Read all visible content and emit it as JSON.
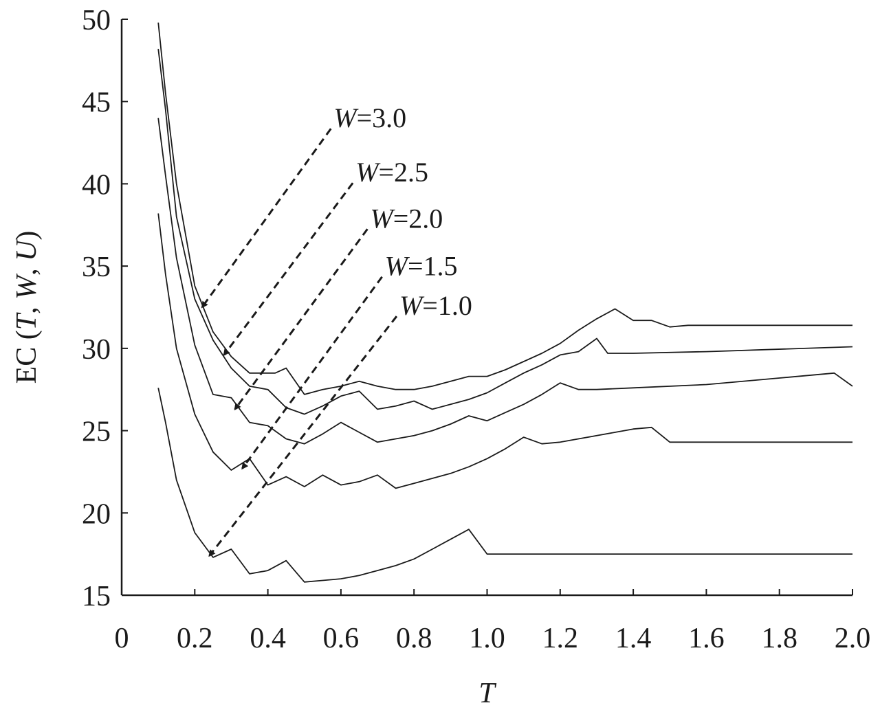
{
  "chart_data": {
    "type": "line",
    "title": "",
    "xlabel": "T",
    "ylabel": {
      "prefix": "EC (",
      "v1": "T",
      "sep1": ", ",
      "v2": "W",
      "sep2": ", ",
      "v3": "U",
      "suffix": ")"
    },
    "xlim": [
      0,
      2.0
    ],
    "ylim": [
      15,
      50
    ],
    "xticks": [
      0,
      0.2,
      0.4,
      0.6,
      0.8,
      1.0,
      1.2,
      1.4,
      1.6,
      1.8,
      2.0
    ],
    "xtick_labels": [
      "0",
      "0.2",
      "0.4",
      "0.6",
      "0.8",
      "1.0",
      "1.2",
      "1.4",
      "1.6",
      "1.8",
      "2.0"
    ],
    "yticks": [
      15,
      20,
      25,
      30,
      35,
      40,
      45,
      50
    ],
    "ytick_labels": [
      "15",
      "20",
      "25",
      "30",
      "35",
      "40",
      "45",
      "50"
    ],
    "grid": false,
    "line_color": "#1a1a1a",
    "series": [
      {
        "name": "W=3.0",
        "label_var": "W",
        "label_val": "=3.0",
        "label_at": [
          0.58,
          43.6
        ],
        "arrow_to": [
          0.22,
          32.5
        ],
        "x": [
          0.1,
          0.12,
          0.15,
          0.2,
          0.25,
          0.3,
          0.35,
          0.38,
          0.42,
          0.45,
          0.5,
          0.55,
          0.6,
          0.65,
          0.7,
          0.75,
          0.8,
          0.85,
          0.9,
          0.95,
          1.0,
          1.05,
          1.1,
          1.15,
          1.2,
          1.25,
          1.3,
          1.35,
          1.4,
          1.45,
          1.5,
          1.55,
          1.6,
          2.0
        ],
        "y": [
          49.8,
          45.5,
          40.0,
          33.8,
          31.0,
          29.5,
          28.5,
          28.5,
          28.5,
          28.8,
          27.2,
          27.5,
          27.7,
          28.0,
          27.7,
          27.5,
          27.5,
          27.7,
          28.0,
          28.3,
          28.3,
          28.7,
          29.2,
          29.7,
          30.3,
          31.1,
          31.8,
          32.4,
          31.7,
          31.7,
          31.3,
          31.4,
          31.4,
          31.4
        ]
      },
      {
        "name": "W=2.5",
        "label_var": "W",
        "label_val": "=2.5",
        "label_at": [
          0.64,
          40.3
        ],
        "arrow_to": [
          0.28,
          29.6
        ],
        "x": [
          0.1,
          0.12,
          0.15,
          0.2,
          0.25,
          0.3,
          0.35,
          0.4,
          0.45,
          0.5,
          0.55,
          0.6,
          0.65,
          0.7,
          0.75,
          0.8,
          0.85,
          0.9,
          0.95,
          1.0,
          1.05,
          1.1,
          1.15,
          1.2,
          1.25,
          1.3,
          1.33,
          1.4,
          1.6,
          2.0
        ],
        "y": [
          48.2,
          44.5,
          38.0,
          33.0,
          30.5,
          28.8,
          27.7,
          27.5,
          26.4,
          26.0,
          26.5,
          27.1,
          27.4,
          26.3,
          26.5,
          26.8,
          26.3,
          26.6,
          26.9,
          27.3,
          27.9,
          28.5,
          29.0,
          29.6,
          29.8,
          30.6,
          29.7,
          29.7,
          29.8,
          30.1
        ]
      },
      {
        "name": "W=2.0",
        "label_var": "W",
        "label_val": "=2.0",
        "label_at": [
          0.68,
          37.5
        ],
        "arrow_to": [
          0.31,
          26.3
        ],
        "x": [
          0.1,
          0.12,
          0.15,
          0.2,
          0.25,
          0.3,
          0.35,
          0.4,
          0.45,
          0.5,
          0.55,
          0.6,
          0.65,
          0.7,
          0.75,
          0.8,
          0.85,
          0.9,
          0.95,
          1.0,
          1.05,
          1.1,
          1.15,
          1.2,
          1.25,
          1.3,
          1.4,
          1.6,
          1.8,
          1.95,
          2.0
        ],
        "y": [
          44.0,
          40.5,
          35.5,
          30.2,
          27.2,
          27.0,
          25.5,
          25.3,
          24.5,
          24.2,
          24.8,
          25.5,
          24.9,
          24.3,
          24.5,
          24.7,
          25.0,
          25.4,
          25.9,
          25.6,
          26.1,
          26.6,
          27.2,
          27.9,
          27.5,
          27.5,
          27.6,
          27.8,
          28.2,
          28.5,
          27.7
        ]
      },
      {
        "name": "W=1.5",
        "label_var": "W",
        "label_val": "=1.5",
        "label_at": [
          0.72,
          34.6
        ],
        "arrow_to": [
          0.33,
          22.7
        ],
        "x": [
          0.1,
          0.12,
          0.15,
          0.2,
          0.25,
          0.3,
          0.35,
          0.4,
          0.45,
          0.5,
          0.55,
          0.6,
          0.65,
          0.7,
          0.75,
          0.8,
          0.85,
          0.9,
          0.95,
          1.0,
          1.05,
          1.1,
          1.15,
          1.2,
          1.25,
          1.3,
          1.35,
          1.4,
          1.45,
          1.5,
          2.0
        ],
        "y": [
          38.2,
          34.5,
          30.0,
          26.0,
          23.7,
          22.6,
          23.3,
          21.7,
          22.2,
          21.6,
          22.3,
          21.7,
          21.9,
          22.3,
          21.5,
          21.8,
          22.1,
          22.4,
          22.8,
          23.3,
          23.9,
          24.6,
          24.2,
          24.3,
          24.5,
          24.7,
          24.9,
          25.1,
          25.2,
          24.3,
          24.3
        ]
      },
      {
        "name": "W=1.0",
        "label_var": "W",
        "label_val": "=1.0",
        "label_at": [
          0.76,
          32.2
        ],
        "arrow_to": [
          0.24,
          17.4
        ],
        "x": [
          0.1,
          0.12,
          0.15,
          0.2,
          0.25,
          0.3,
          0.35,
          0.4,
          0.45,
          0.5,
          0.55,
          0.6,
          0.65,
          0.7,
          0.75,
          0.8,
          0.85,
          0.9,
          0.95,
          1.0,
          2.0
        ],
        "y": [
          27.6,
          25.5,
          22.0,
          18.8,
          17.3,
          17.8,
          16.3,
          16.5,
          17.1,
          15.8,
          15.9,
          16.0,
          16.2,
          16.5,
          16.8,
          17.2,
          17.8,
          18.4,
          19.0,
          17.5,
          17.5
        ]
      }
    ]
  }
}
